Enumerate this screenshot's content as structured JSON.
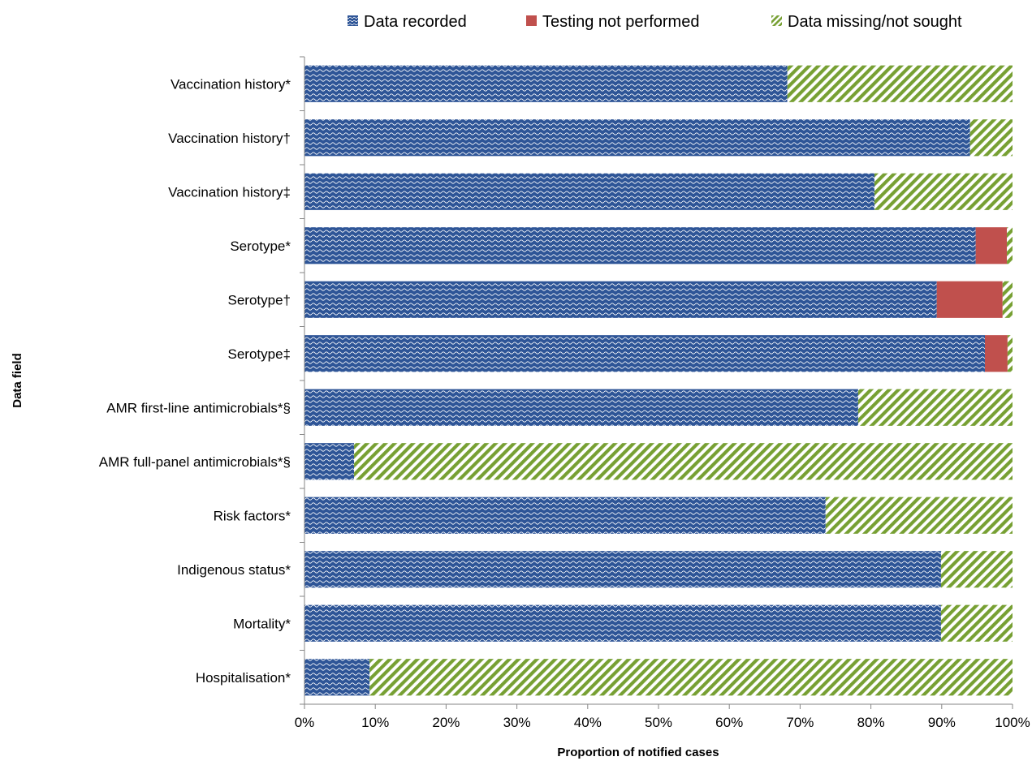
{
  "chart_data": {
    "type": "bar",
    "orientation": "horizontal",
    "stacked": true,
    "categories": [
      "Vaccination history*",
      "Vaccination history†",
      "Vaccination history‡",
      "Serotype*",
      "Serotype†",
      "Serotype‡",
      "AMR first-line antimicrobials*§",
      "AMR full-panel antimicrobials*§",
      "Risk factors*",
      "Indigenous status*",
      "Mortality*",
      "Hospitalisation*"
    ],
    "series": [
      {
        "name": "Data recorded",
        "color": "#2E5597",
        "pattern": "wave",
        "values": [
          68.2,
          94.0,
          80.5,
          94.8,
          89.3,
          96.1,
          78.2,
          7.0,
          73.6,
          89.9,
          89.9,
          9.2
        ]
      },
      {
        "name": "Testing not performed",
        "color": "#C0504D",
        "pattern": "solid",
        "values": [
          0,
          0,
          0,
          4.4,
          9.3,
          3.2,
          0,
          0,
          0,
          0,
          0,
          0
        ]
      },
      {
        "name": "Data missing/not sought",
        "color": "#77A033",
        "pattern": "diagonal-stripes",
        "values": [
          31.8,
          6.0,
          19.5,
          0.8,
          1.4,
          0.7,
          21.8,
          93.0,
          26.4,
          10.1,
          10.1,
          90.8
        ]
      }
    ],
    "xlabel": "Proportion of  notified cases",
    "ylabel": "Data field",
    "xlim": [
      0,
      100
    ],
    "x_ticks": [
      "0%",
      "10%",
      "20%",
      "30%",
      "40%",
      "50%",
      "60%",
      "70%",
      "80%",
      "90%",
      "100%"
    ],
    "legend_position": "top",
    "grid": false
  }
}
